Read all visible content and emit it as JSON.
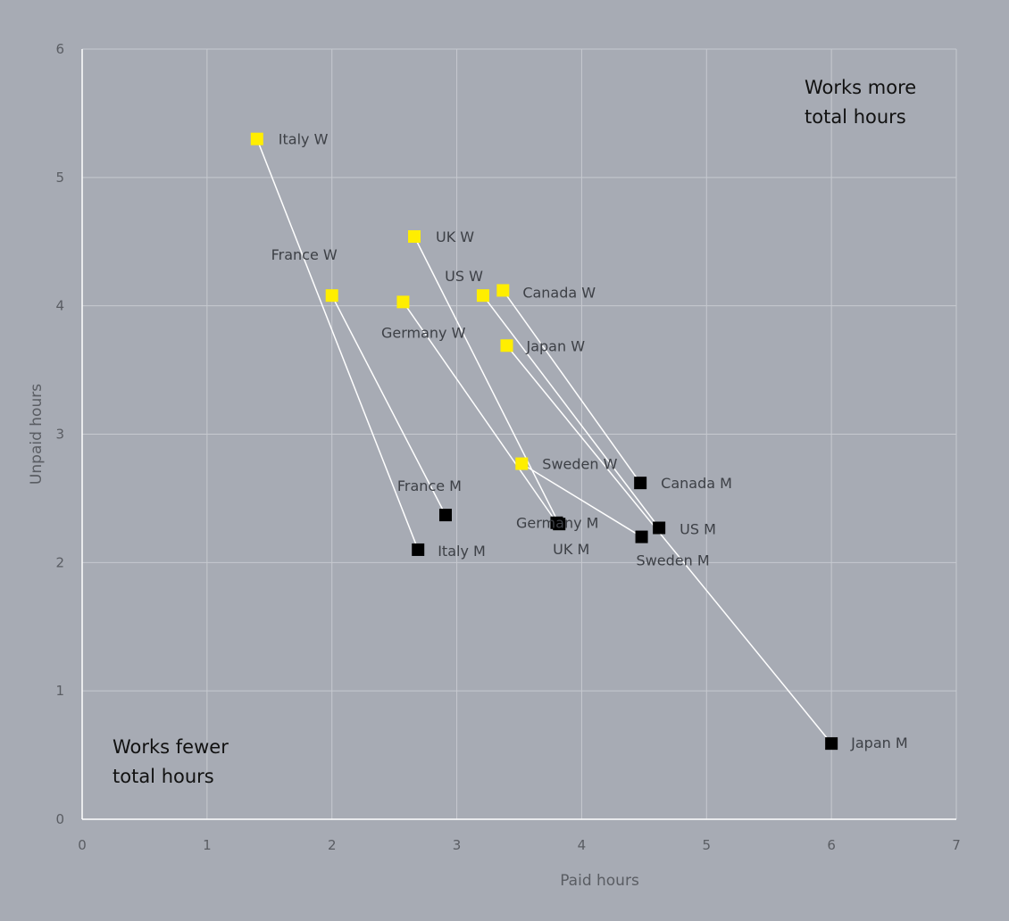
{
  "chart_data": {
    "type": "scatter",
    "title": "",
    "xlabel": "Paid hours",
    "ylabel": "Unpaid hours",
    "xlim": [
      0,
      7
    ],
    "ylim": [
      0,
      6
    ],
    "x_ticks": [
      0,
      1,
      2,
      3,
      4,
      5,
      6,
      7
    ],
    "y_ticks": [
      0,
      1,
      2,
      3,
      4,
      5,
      6
    ],
    "grid": true,
    "legend": "none",
    "colors": {
      "women_marker": "#ffee00",
      "men_marker": "#000000",
      "connector": "#ffffff",
      "background": "#a7abb4"
    },
    "annotations": [
      {
        "lines": [
          "Works more",
          "total hours"
        ],
        "position": "top-right"
      },
      {
        "lines": [
          "Works fewer",
          "total hours"
        ],
        "position": "bottom-left"
      }
    ],
    "series": [
      {
        "group": "women",
        "points": [
          {
            "label": "Italy W",
            "x": 1.4,
            "y": 5.3
          },
          {
            "label": "France W",
            "x": 2.0,
            "y": 4.08
          },
          {
            "label": "UK W",
            "x": 2.66,
            "y": 4.54
          },
          {
            "label": "Germany W",
            "x": 2.57,
            "y": 4.03
          },
          {
            "label": "US W",
            "x": 3.21,
            "y": 4.08
          },
          {
            "label": "Canada W",
            "x": 3.37,
            "y": 4.12
          },
          {
            "label": "Japan W",
            "x": 3.4,
            "y": 3.69
          },
          {
            "label": "Sweden W",
            "x": 3.52,
            "y": 2.77
          }
        ]
      },
      {
        "group": "men",
        "points": [
          {
            "label": "Italy M",
            "x": 2.69,
            "y": 2.1
          },
          {
            "label": "France M",
            "x": 2.91,
            "y": 2.37
          },
          {
            "label": "Germany M",
            "x": 3.8,
            "y": 2.31
          },
          {
            "label": "UK M",
            "x": 3.82,
            "y": 2.3
          },
          {
            "label": "Canada M",
            "x": 4.47,
            "y": 2.62
          },
          {
            "label": "US M",
            "x": 4.62,
            "y": 2.27
          },
          {
            "label": "Sweden M",
            "x": 4.48,
            "y": 2.2
          },
          {
            "label": "Japan M",
            "x": 6.0,
            "y": 0.59
          }
        ]
      }
    ],
    "pairs": [
      [
        "Italy W",
        "Italy M"
      ],
      [
        "France W",
        "France M"
      ],
      [
        "UK W",
        "UK M"
      ],
      [
        "Germany W",
        "Germany M"
      ],
      [
        "US W",
        "US M"
      ],
      [
        "Canada W",
        "Canada M"
      ],
      [
        "Japan W",
        "Japan M"
      ],
      [
        "Sweden W",
        "Sweden M"
      ]
    ]
  }
}
